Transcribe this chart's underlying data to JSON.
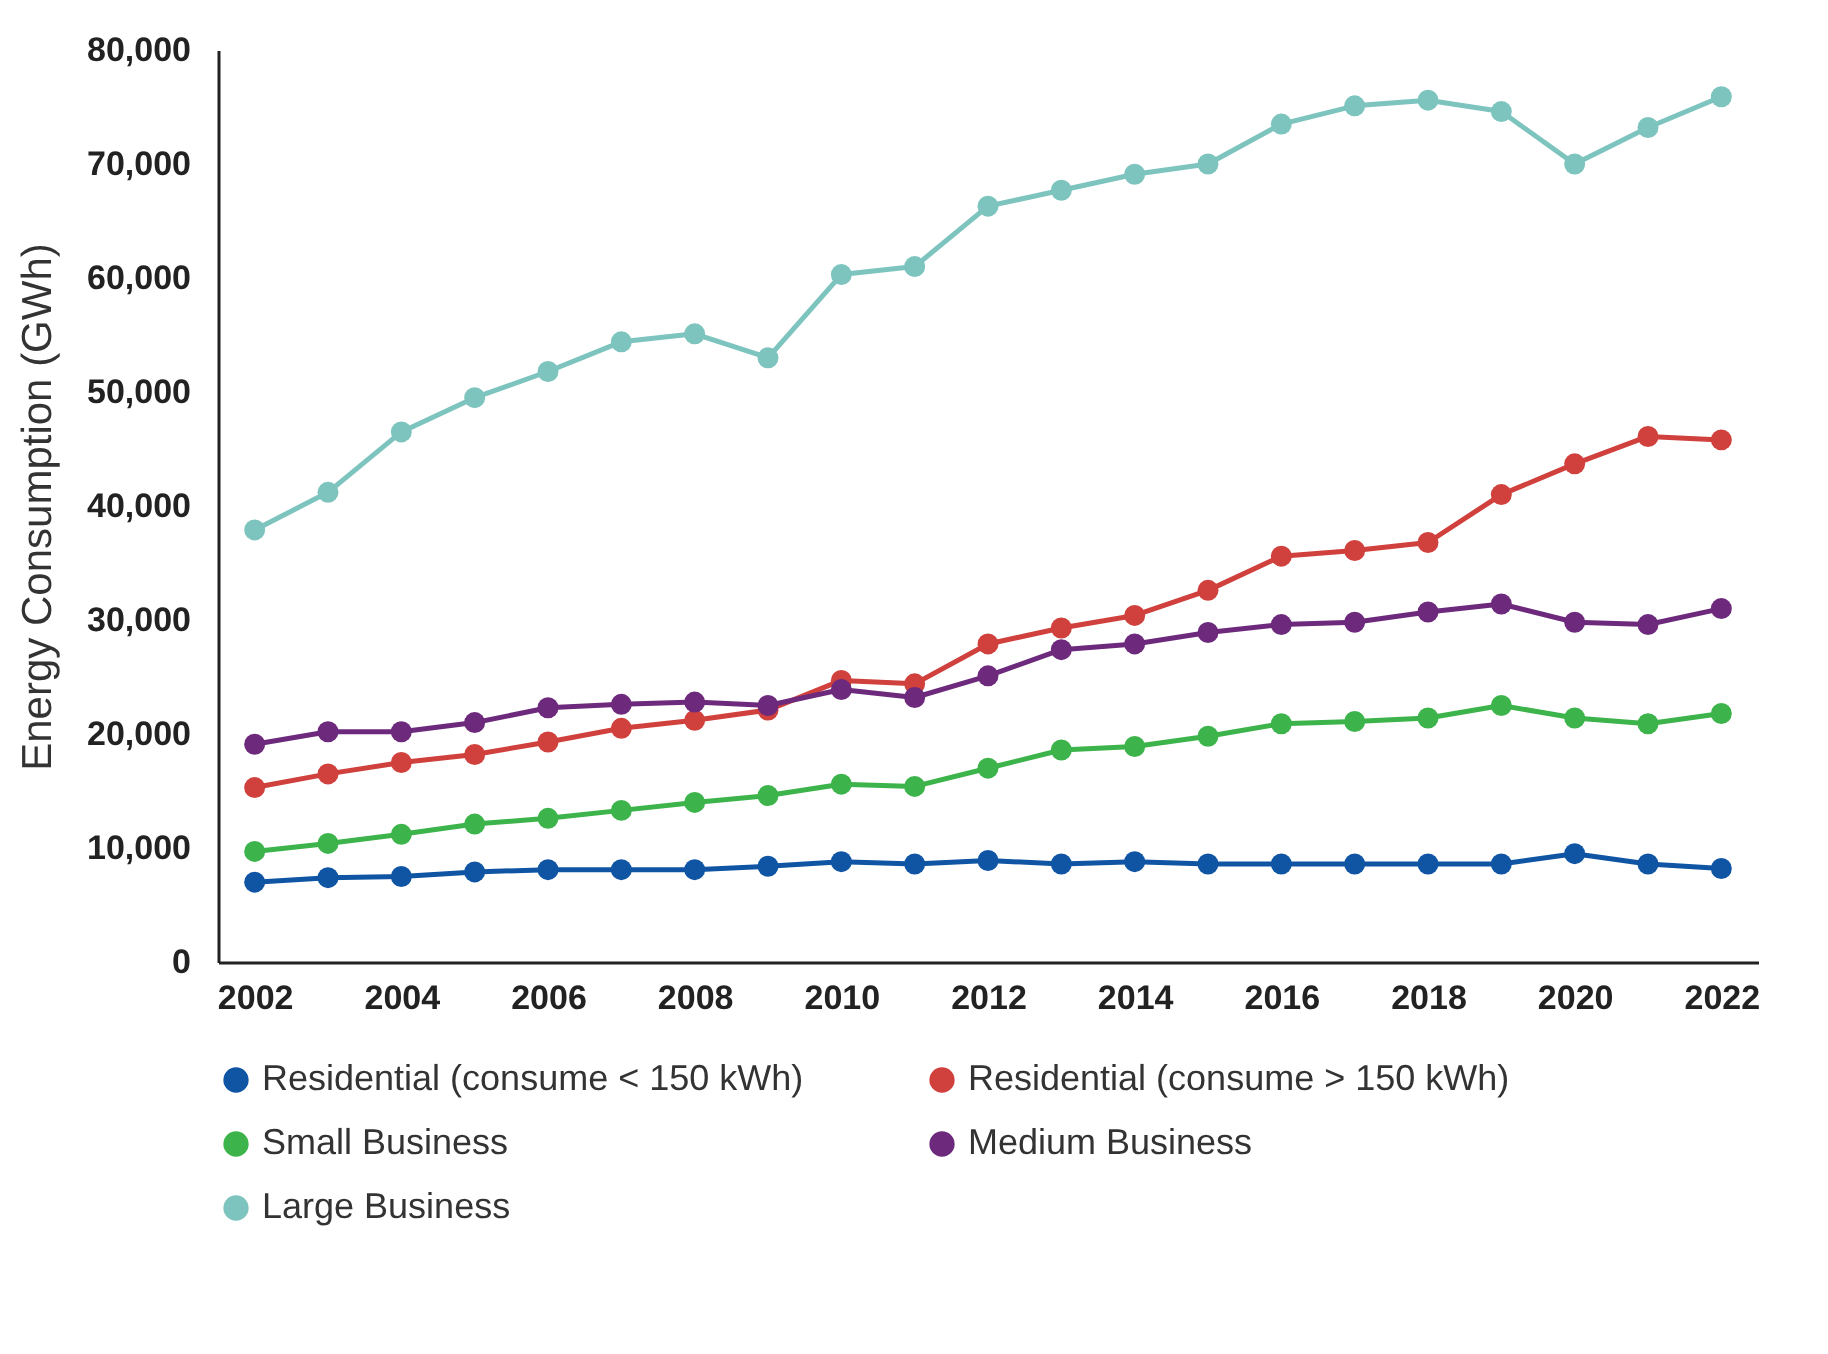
{
  "chart_data": {
    "type": "line",
    "ylabel": "Energy Consumption (GWh)",
    "x": [
      2002,
      2003,
      2004,
      2005,
      2006,
      2007,
      2008,
      2009,
      2010,
      2011,
      2012,
      2013,
      2014,
      2015,
      2016,
      2017,
      2018,
      2019,
      2020,
      2021,
      2022
    ],
    "xlim": [
      2001.5,
      2022.5
    ],
    "xticks": [
      2002,
      2004,
      2006,
      2008,
      2010,
      2012,
      2014,
      2016,
      2018,
      2020,
      2022
    ],
    "ylim": [
      0,
      80000
    ],
    "yticks": [
      0,
      {
        "value": 10000,
        "label": "10,000"
      },
      {
        "value": 20000,
        "label": "20,000"
      },
      {
        "value": 30000,
        "label": "30,000"
      },
      {
        "value": 40000,
        "label": "40,000"
      },
      {
        "value": 50000,
        "label": "50,000"
      },
      {
        "value": 60000,
        "label": "60,000"
      },
      {
        "value": 70000,
        "label": "70,000"
      },
      {
        "value": 80000,
        "label": "80,000"
      }
    ],
    "grid": false,
    "legend": "bottom",
    "marker": "circle",
    "series": [
      {
        "name": "Residential (consume < 150 kWh)",
        "color": "#0f55a3",
        "values": [
          7000,
          7400,
          7500,
          7900,
          8100,
          8100,
          8100,
          8400,
          8800,
          8600,
          8900,
          8600,
          8800,
          8600,
          8600,
          8600,
          8600,
          8600,
          9500,
          8600,
          8200
        ]
      },
      {
        "name": "Residential (consume > 150 kWh)",
        "color": "#d0403c",
        "values": [
          15300,
          16500,
          17500,
          18200,
          19300,
          20500,
          21200,
          22100,
          24700,
          24400,
          27900,
          29300,
          30400,
          32600,
          35600,
          36100,
          36800,
          41000,
          43700,
          46100,
          45800
        ]
      },
      {
        "name": "Small Business",
        "color": "#3cb44b",
        "values": [
          9700,
          10400,
          11200,
          12100,
          12600,
          13300,
          14000,
          14600,
          15600,
          15400,
          17000,
          18600,
          18900,
          19800,
          20900,
          21100,
          21400,
          22500,
          21400,
          20900,
          21800
        ]
      },
      {
        "name": "Medium Business",
        "color": "#6d2a7c",
        "values": [
          19100,
          20200,
          20200,
          21000,
          22300,
          22600,
          22800,
          22500,
          23900,
          23200,
          25100,
          27400,
          27900,
          28900,
          29600,
          29800,
          30700,
          31400,
          29800,
          29600,
          31000
        ]
      },
      {
        "name": "Large Business",
        "color": "#7dc4bf",
        "values": [
          37900,
          41200,
          46500,
          49500,
          51800,
          54400,
          55100,
          53000,
          60300,
          61000,
          66300,
          67700,
          69100,
          70000,
          73500,
          75100,
          75600,
          74600,
          70000,
          73200,
          75900
        ]
      }
    ]
  }
}
